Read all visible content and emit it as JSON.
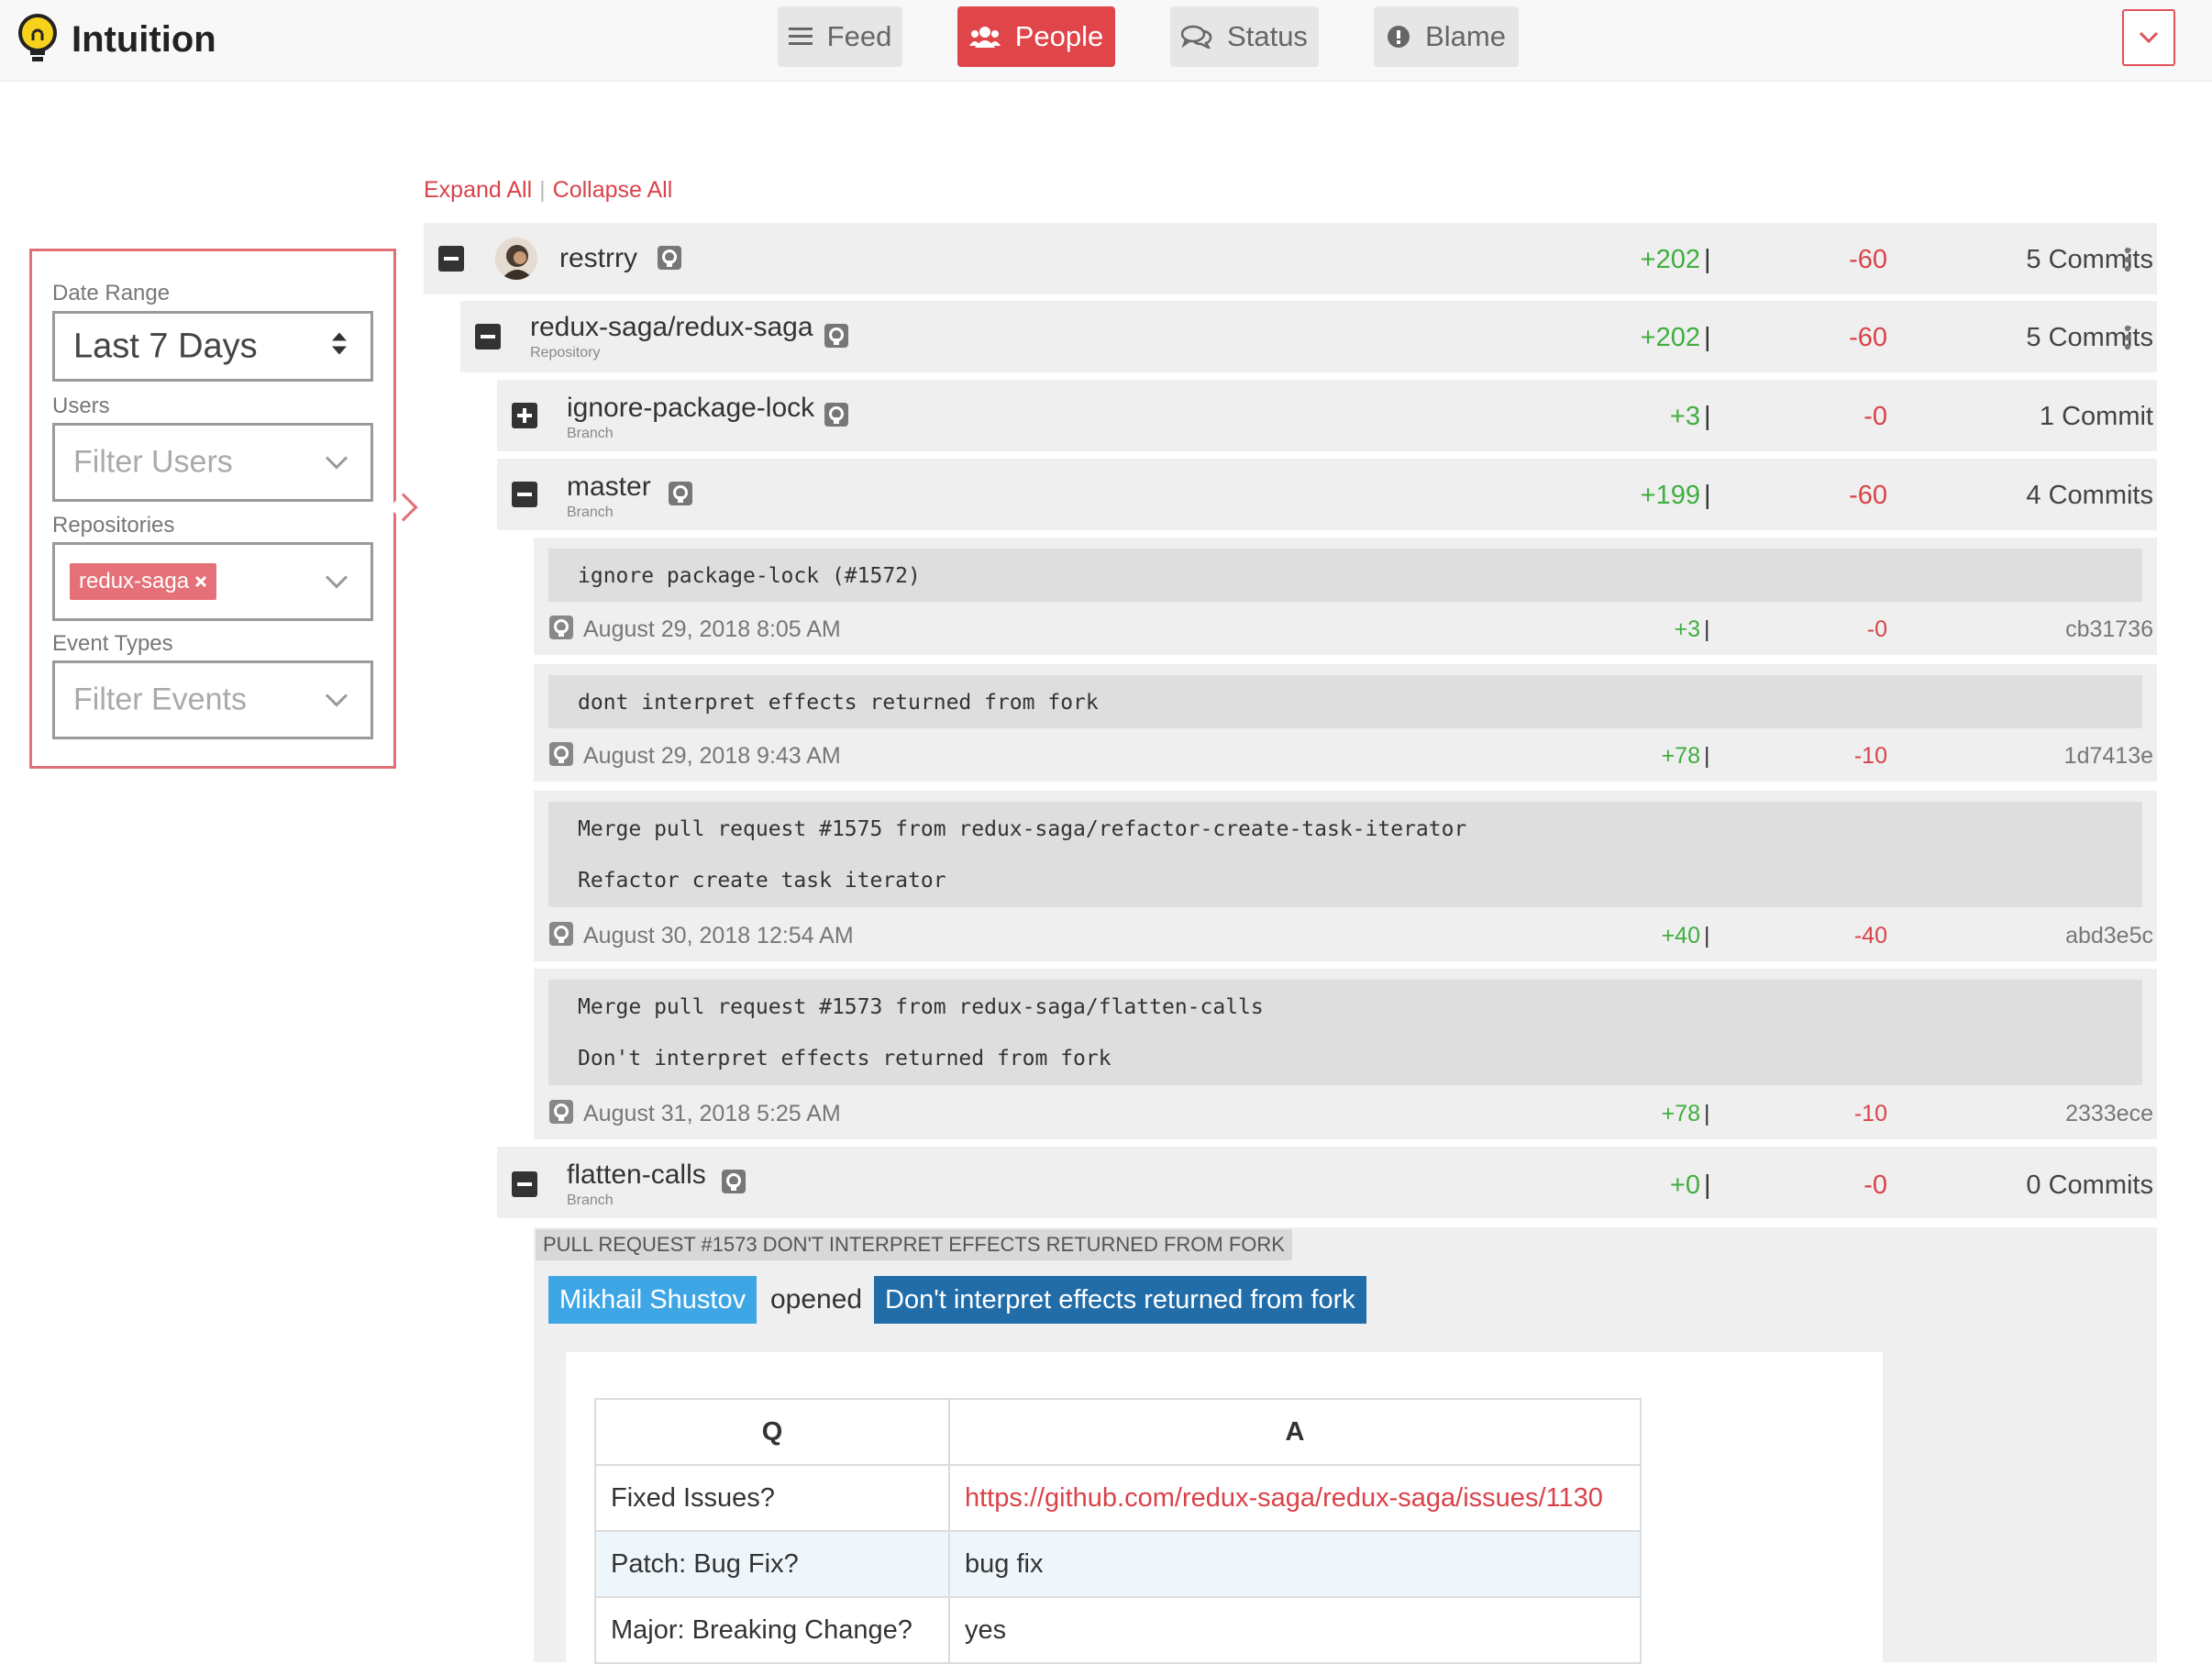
{
  "app": {
    "name": "Intuition",
    "brand_color": "#e0454a"
  },
  "nav": {
    "feed": "Feed",
    "people": "People",
    "status": "Status",
    "blame": "Blame",
    "active": "People"
  },
  "filters": {
    "date_range_label": "Date Range",
    "date_range_value": "Last 7 Days",
    "users_label": "Users",
    "users_placeholder": "Filter Users",
    "repositories_label": "Repositories",
    "repository_tag": "redux-saga",
    "event_types_label": "Event Types",
    "event_types_placeholder": "Filter Events"
  },
  "actions": {
    "expand_all": "Expand All",
    "separator": "|",
    "collapse_all": "Collapse All"
  },
  "tree": {
    "user": {
      "name": "restrry",
      "additions": "+202",
      "deletions": "-60",
      "commits": "5 Commits"
    },
    "repo": {
      "name": "redux-saga/redux-saga",
      "type": "Repository",
      "additions": "+202",
      "deletions": "-60",
      "commits": "5 Commits"
    },
    "branches": [
      {
        "name": "ignore-package-lock",
        "type": "Branch",
        "additions": "+3",
        "deletions": "-0",
        "commits": "1 Commit"
      },
      {
        "name": "master",
        "type": "Branch",
        "additions": "+199",
        "deletions": "-60",
        "commits": "4 Commits"
      },
      {
        "name": "flatten-calls",
        "type": "Branch",
        "additions": "+0",
        "deletions": "-0",
        "commits": "0 Commits"
      }
    ],
    "bar": "|"
  },
  "commits": [
    {
      "line1": "ignore package-lock (#1572)",
      "line2": "",
      "date": "August 29, 2018 8:05 AM",
      "additions": "+3",
      "deletions": "-0",
      "sha": "cb31736"
    },
    {
      "line1": "dont interpret effects returned from fork",
      "line2": "",
      "date": "August 29, 2018 9:43 AM",
      "additions": "+78",
      "deletions": "-10",
      "sha": "1d7413e"
    },
    {
      "line1": "Merge pull request #1575 from redux-saga/refactor-create-task-iterator",
      "line2": "Refactor create task iterator",
      "date": "August 30, 2018 12:54 AM",
      "additions": "+40",
      "deletions": "-40",
      "sha": "abd3e5c"
    },
    {
      "line1": "Merge pull request #1573 from redux-saga/flatten-calls",
      "line2": "Don't interpret effects returned from fork",
      "date": "August 31, 2018 5:25 AM",
      "additions": "+78",
      "deletions": "-10",
      "sha": "2333ece"
    }
  ],
  "event": {
    "title": "PULL REQUEST #1573 DON'T INTERPRET EFFECTS RETURNED FROM FORK",
    "user": "Mikhail Shustov",
    "verb": "opened",
    "pr_title": "Don't interpret effects returned from fork",
    "table": {
      "headers": [
        "Q",
        "A"
      ],
      "rows": [
        {
          "q": "Fixed Issues?",
          "a": "https://github.com/redux-saga/redux-saga/issues/1130"
        },
        {
          "q": "Patch: Bug Fix?",
          "a": "bug fix"
        },
        {
          "q": "Major: Breaking Change?",
          "a": "yes"
        }
      ]
    }
  },
  "icons": {
    "logo": "lightbulb-icon",
    "feed": "list-icon",
    "people": "users-icon",
    "status": "comments-icon",
    "blame": "exclamation-circle-icon",
    "github": "github-icon"
  },
  "colors": {
    "additions": "#3fae3f",
    "deletions": "#d9434a",
    "user_chip": "#3fa6e6",
    "pr_chip": "#226da8"
  }
}
